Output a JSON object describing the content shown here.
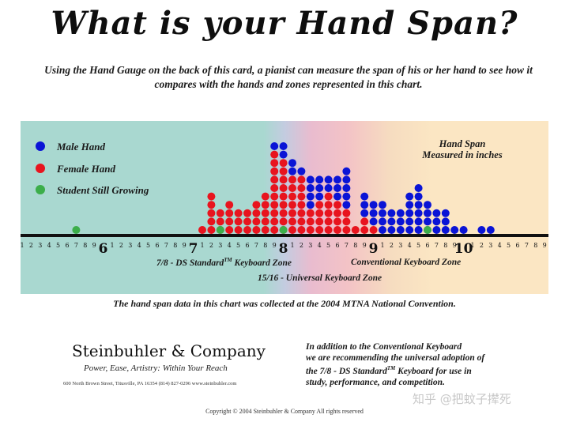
{
  "header": {
    "title": "What is your Hand Span?",
    "intro": "Using the Hand Gauge on the back of this card, a pianist can measure the span of his or her hand to see how it compares with the hands and zones represented in this chart."
  },
  "legend": {
    "male": "Male Hand",
    "female": "Female Hand",
    "student": "Student Still Growing",
    "colors": {
      "male": "#0a14d6",
      "female": "#e8141e",
      "student": "#3cae4a"
    }
  },
  "measure_note": {
    "line1": "Hand Span",
    "line2": "Measured in inches"
  },
  "zones": {
    "ds78_pre": "7/8 - DS Standard",
    "ds78_tm": "TM",
    "ds78_post": " Keyboard Zone",
    "conventional": "Conventional Keyboard Zone",
    "universal": "15/16 - Universal Keyboard Zone"
  },
  "data_note": "The hand span data in this chart was collected at the 2004 MTNA National Convention.",
  "company": {
    "name": "Steinbuhler & Company",
    "tagline": "Power, Ease, Artistry:  Within Your Reach",
    "address": "600 North Brown Street, Titusville, PA 16354  (814) 827-0296  www.steinbuhler.com"
  },
  "recommendation": {
    "line1": "In addition to the Conventional Keyboard",
    "line2": "we are recommending the universal adoption of",
    "line3_pre": "the 7/8 - DS Standard",
    "line3_tm": "TM",
    "line3_post": " Keyboard for use in",
    "line4": "study, performance, and competition."
  },
  "copyright": "Copyright © 2004 Steinbuhler & Company    All rights reserved",
  "watermark": "知乎 @把蚊子撵死",
  "chart_data": {
    "type": "dot-plot",
    "x_unit": "inches (tenths)",
    "xlim": [
      5.0,
      10.9
    ],
    "x_tick_labels": [
      "1",
      "2",
      "3",
      "4",
      "5",
      "6",
      "7",
      "8",
      "9",
      "6",
      "1",
      "2",
      "3",
      "4",
      "5",
      "6",
      "7",
      "8",
      "9",
      "7",
      "1",
      "2",
      "3",
      "4",
      "5",
      "6",
      "7",
      "8",
      "9",
      "8",
      "1",
      "2",
      "3",
      "4",
      "5",
      "6",
      "7",
      "8",
      "9",
      "9",
      "1",
      "2",
      "3",
      "4",
      "5",
      "6",
      "7",
      "8",
      "9",
      "10",
      "1",
      "2",
      "3",
      "4",
      "5",
      "6",
      "7",
      "8",
      "9"
    ],
    "series": [
      {
        "name": "Female Hand",
        "columns": [
          {
            "x": 7.0,
            "count": 1
          },
          {
            "x": 7.1,
            "count": 5
          },
          {
            "x": 7.2,
            "count": 3
          },
          {
            "x": 7.3,
            "count": 4
          },
          {
            "x": 7.4,
            "count": 3
          },
          {
            "x": 7.5,
            "count": 3
          },
          {
            "x": 7.6,
            "count": 4
          },
          {
            "x": 7.7,
            "count": 5
          },
          {
            "x": 7.8,
            "count": 10
          },
          {
            "x": 7.9,
            "count": 9
          },
          {
            "x": 8.0,
            "count": 7
          },
          {
            "x": 8.1,
            "count": 7
          },
          {
            "x": 8.2,
            "count": 3
          },
          {
            "x": 8.3,
            "count": 4
          },
          {
            "x": 8.4,
            "count": 5
          },
          {
            "x": 8.5,
            "count": 4
          },
          {
            "x": 8.6,
            "count": 3
          },
          {
            "x": 8.7,
            "count": 1
          },
          {
            "x": 8.8,
            "count": 2
          },
          {
            "x": 8.9,
            "count": 1
          }
        ]
      },
      {
        "name": "Male Hand",
        "columns": [
          {
            "x": 7.8,
            "count": 1
          },
          {
            "x": 7.9,
            "count": 2
          },
          {
            "x": 8.0,
            "count": 2
          },
          {
            "x": 8.1,
            "count": 1
          },
          {
            "x": 8.2,
            "count": 4
          },
          {
            "x": 8.3,
            "count": 3
          },
          {
            "x": 8.4,
            "count": 2
          },
          {
            "x": 8.5,
            "count": 3
          },
          {
            "x": 8.6,
            "count": 5
          },
          {
            "x": 8.8,
            "count": 3
          },
          {
            "x": 8.9,
            "count": 3
          },
          {
            "x": 9.0,
            "count": 4
          },
          {
            "x": 9.1,
            "count": 3
          },
          {
            "x": 9.2,
            "count": 3
          },
          {
            "x": 9.3,
            "count": 5
          },
          {
            "x": 9.4,
            "count": 6
          },
          {
            "x": 9.5,
            "count": 4
          },
          {
            "x": 9.6,
            "count": 3
          },
          {
            "x": 9.7,
            "count": 3
          },
          {
            "x": 9.8,
            "count": 1
          },
          {
            "x": 9.9,
            "count": 1
          },
          {
            "x": 10.1,
            "count": 1
          },
          {
            "x": 10.2,
            "count": 1
          }
        ]
      },
      {
        "name": "Student Still Growing",
        "columns": [
          {
            "x": 5.6,
            "count": 1
          },
          {
            "x": 7.2,
            "count": 1
          },
          {
            "x": 7.9,
            "count": 1
          },
          {
            "x": 9.5,
            "count": 1
          }
        ]
      }
    ]
  }
}
